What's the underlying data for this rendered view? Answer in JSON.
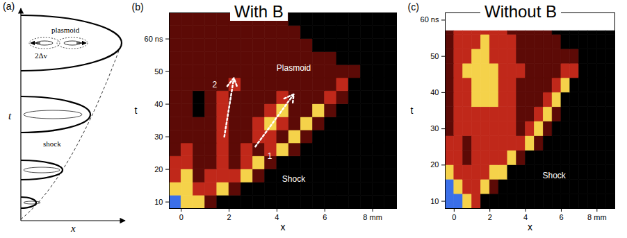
{
  "diagram": {
    "label": "(a)",
    "x_label": "x",
    "y_label": "t",
    "annotations": [
      "plasmoid",
      "2Δv",
      "shock"
    ]
  },
  "chart_data": [
    {
      "type": "heatmap",
      "label": "(b)",
      "title": "With B",
      "x_label": "x",
      "y_label": "t",
      "xlim": [
        -0.5,
        9
      ],
      "ylim": [
        8,
        68
      ],
      "xticks": [
        0,
        2,
        4,
        6,
        {
          "value": 8,
          "label": "8 mm"
        }
      ],
      "yticks": [
        10,
        20,
        30,
        40,
        50,
        {
          "value": 60,
          "label": "60 ns"
        }
      ],
      "x_bins": [
        -0.5,
        0,
        0.5,
        1,
        1.5,
        2,
        2.5,
        3,
        3.5,
        4,
        4.5,
        5,
        5.5,
        6,
        6.5,
        7,
        7.5,
        8,
        8.5,
        9
      ],
      "t_bins": [
        8,
        12,
        16,
        20,
        24,
        28,
        32,
        36,
        40,
        44,
        48,
        52,
        56,
        60,
        64,
        68
      ],
      "intensity": [
        [
          4,
          3,
          3,
          1,
          0,
          0,
          0,
          0,
          0,
          0,
          0,
          0,
          0,
          0,
          0,
          0,
          0,
          0,
          0
        ],
        [
          3,
          3,
          2,
          2,
          3,
          1,
          0,
          0,
          0,
          0,
          0,
          0,
          0,
          0,
          0,
          0,
          0,
          0,
          0
        ],
        [
          2,
          3,
          1,
          2,
          2,
          2,
          3,
          1,
          0,
          0,
          0,
          0,
          0,
          0,
          0,
          0,
          0,
          0,
          0
        ],
        [
          2,
          2,
          1,
          1,
          2,
          1,
          2,
          3,
          1,
          0,
          0,
          0,
          0,
          0,
          0,
          0,
          0,
          0,
          0
        ],
        [
          1,
          2,
          1,
          1,
          2,
          1,
          2,
          1,
          2,
          3,
          1,
          0,
          0,
          0,
          0,
          0,
          0,
          0,
          0
        ],
        [
          1,
          1,
          1,
          1,
          2,
          1,
          1,
          2,
          2,
          1,
          3,
          1,
          0,
          0,
          0,
          0,
          0,
          0,
          0
        ],
        [
          1,
          1,
          1,
          1,
          2,
          1,
          1,
          2,
          3,
          2,
          1,
          3,
          1,
          0,
          0,
          0,
          0,
          0,
          0
        ],
        [
          1,
          1,
          0,
          1,
          2,
          1,
          1,
          1,
          2,
          3,
          1,
          1,
          3,
          1,
          0,
          0,
          0,
          0,
          0
        ],
        [
          1,
          1,
          0,
          1,
          2,
          1,
          1,
          1,
          1,
          2,
          1,
          1,
          1,
          2,
          1,
          0,
          0,
          0,
          0
        ],
        [
          1,
          1,
          1,
          1,
          1,
          2,
          1,
          1,
          1,
          1,
          1,
          1,
          1,
          1,
          2,
          0,
          0,
          0,
          0
        ],
        [
          1,
          1,
          1,
          1,
          1,
          1,
          1,
          1,
          1,
          1,
          1,
          1,
          1,
          1,
          1,
          1,
          0,
          0,
          0
        ],
        [
          1,
          1,
          1,
          1,
          1,
          1,
          1,
          1,
          1,
          1,
          1,
          1,
          1,
          1,
          0,
          0,
          0,
          0,
          0
        ],
        [
          1,
          1,
          1,
          1,
          1,
          1,
          1,
          1,
          1,
          1,
          1,
          1,
          0,
          0,
          0,
          0,
          0,
          0,
          0
        ],
        [
          1,
          1,
          1,
          1,
          1,
          1,
          1,
          1,
          1,
          1,
          1,
          0,
          0,
          0,
          0,
          0,
          0,
          0,
          0
        ],
        [
          1,
          1,
          1,
          1,
          1,
          1,
          1,
          1,
          1,
          1,
          0,
          0,
          0,
          0,
          0,
          0,
          0,
          0,
          0
        ]
      ],
      "levels": [
        0,
        1,
        2,
        3,
        4
      ],
      "level_colors": [
        "#000000",
        "#5c0a06",
        "#c0281a",
        "#f5d24a",
        "#3b6fe8"
      ],
      "annotations": [
        {
          "text": "Plasmoid",
          "x": 4.7,
          "y": 51
        },
        {
          "text": "Shock",
          "x": 4.7,
          "y": 17
        },
        {
          "text": "1",
          "x": 3.7,
          "y": 24
        },
        {
          "text": "2",
          "x": 1.4,
          "y": 46
        }
      ],
      "arrows": [
        {
          "x1": 3.1,
          "y1": 27,
          "x2": 4.7,
          "y2": 43
        },
        {
          "x1": 1.8,
          "y1": 30,
          "x2": 2.2,
          "y2": 48
        }
      ]
    },
    {
      "type": "heatmap",
      "label": "(c)",
      "title": "Without B",
      "x_label": "x",
      "y_label": "t",
      "xlim": [
        -0.5,
        9
      ],
      "ylim": [
        8,
        62
      ],
      "xticks": [
        0,
        2,
        4,
        6,
        {
          "value": 8,
          "label": "8 mm"
        }
      ],
      "yticks": [
        10,
        20,
        30,
        40,
        50,
        {
          "value": 60,
          "label": "60 ns"
        }
      ],
      "x_bins": [
        -0.5,
        0,
        0.5,
        1,
        1.5,
        2,
        2.5,
        3,
        3.5,
        4,
        4.5,
        5,
        5.5,
        6,
        6.5,
        7,
        7.5,
        8,
        8.5,
        9
      ],
      "t_bins": [
        8,
        12,
        16,
        20,
        24,
        28,
        32,
        36,
        40,
        44,
        48,
        52,
        56,
        57
      ],
      "intensity": [
        [
          4,
          4,
          3,
          2,
          0,
          0,
          0,
          0,
          0,
          0,
          0,
          0,
          0,
          0,
          0,
          0,
          0,
          0,
          0
        ],
        [
          4,
          3,
          2,
          2,
          3,
          1,
          0,
          0,
          0,
          0,
          0,
          0,
          0,
          0,
          0,
          0,
          0,
          0,
          0
        ],
        [
          3,
          2,
          2,
          2,
          2,
          3,
          3,
          0,
          0,
          0,
          0,
          0,
          0,
          0,
          0,
          0,
          0,
          0,
          0
        ],
        [
          2,
          2,
          1,
          2,
          2,
          2,
          2,
          3,
          1,
          0,
          0,
          0,
          0,
          0,
          0,
          0,
          0,
          0,
          0
        ],
        [
          2,
          2,
          1,
          2,
          2,
          2,
          2,
          2,
          2,
          3,
          1,
          0,
          0,
          0,
          0,
          0,
          0,
          0,
          0
        ],
        [
          1,
          2,
          2,
          2,
          2,
          2,
          2,
          2,
          1,
          2,
          3,
          1,
          0,
          0,
          0,
          0,
          0,
          0,
          0
        ],
        [
          1,
          2,
          2,
          2,
          2,
          2,
          2,
          2,
          1,
          1,
          2,
          3,
          1,
          0,
          0,
          0,
          0,
          0,
          0
        ],
        [
          1,
          2,
          2,
          3,
          3,
          3,
          2,
          2,
          1,
          1,
          1,
          2,
          3,
          0,
          0,
          0,
          0,
          0,
          0
        ],
        [
          1,
          2,
          2,
          3,
          3,
          3,
          2,
          2,
          1,
          1,
          1,
          1,
          2,
          3,
          0,
          0,
          0,
          0,
          0
        ],
        [
          1,
          2,
          3,
          3,
          3,
          3,
          2,
          2,
          2,
          1,
          1,
          1,
          1,
          2,
          2,
          0,
          0,
          0,
          0
        ],
        [
          1,
          2,
          2,
          3,
          3,
          2,
          2,
          2,
          1,
          1,
          1,
          1,
          1,
          1,
          1,
          0,
          0,
          0,
          0
        ],
        [
          1,
          2,
          2,
          2,
          3,
          2,
          2,
          2,
          1,
          1,
          1,
          1,
          1,
          0,
          0,
          0,
          0,
          0,
          0
        ],
        [
          1,
          2,
          2,
          2,
          2,
          2,
          2,
          1,
          1,
          1,
          1,
          1,
          0,
          0,
          0,
          0,
          0,
          0,
          0
        ]
      ],
      "levels": [
        0,
        1,
        2,
        3,
        4
      ],
      "level_colors": [
        "#000000",
        "#5c0a06",
        "#c0281a",
        "#f5d24a",
        "#3b6fe8"
      ],
      "annotations": [
        {
          "text": "Shock",
          "x": 5.6,
          "y": 17
        }
      ]
    }
  ]
}
